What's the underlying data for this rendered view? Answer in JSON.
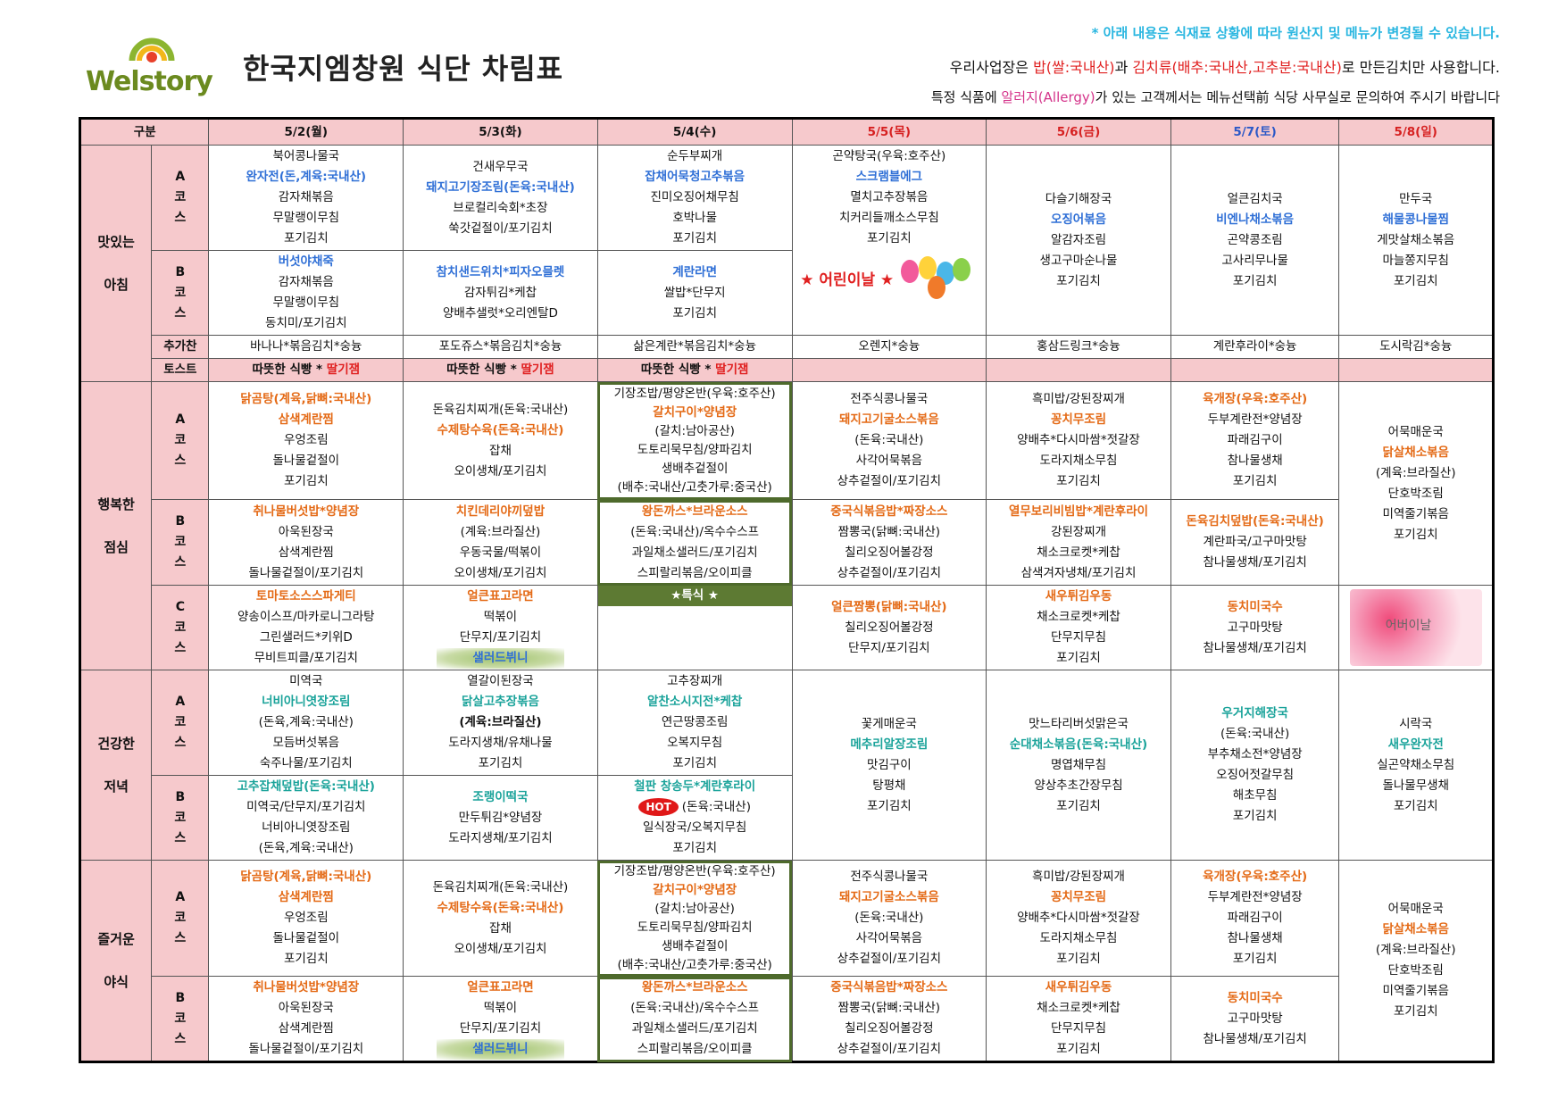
{
  "brand": "Welstory",
  "title": "한국지엠창원 식단 차림표",
  "notices": {
    "line1": "* 아래 내용은 식재료 상황에 따라 원산지 및 메뉴가 변경될 수 있습니다.",
    "line2_a": "우리사업장은 ",
    "line2_b": "밥(쌀:국내산)",
    "line2_c": "과 ",
    "line2_d": "김치류(배추:국내산,고추분:국내산)",
    "line2_e": "로 만든김치만 사용합니다.",
    "line3_a": "특정 식품에 ",
    "line3_b": "알러지(Allergy)",
    "line3_c": "가 있는 고객께서는 메뉴선택前 식당 사무실로 문의하여 주시기 바랍니다"
  },
  "colors": {
    "header_pink": "#f6c9cc",
    "saturday_blue": "#2b58c7",
    "holiday_red": "#d62020",
    "logo_green": "#6b8a1f"
  },
  "header": {
    "label": "구분",
    "days": [
      "5/2(월)",
      "5/3(화)",
      "5/4(수)",
      "5/5(목)",
      "5/6(금)",
      "5/7(토)",
      "5/8(일)"
    ]
  },
  "meals": {
    "breakfast": "맛있는\n\n아침",
    "lunch": "행복한\n\n점심",
    "dinner": "건강한\n\n저녁",
    "night": "즐거운\n\n야식"
  },
  "courses": {
    "a": "A\n코\n스",
    "b": "B\n코\n스",
    "c": "C\n코\n스"
  },
  "rowlabels": {
    "extra": "추가찬",
    "toast": "토스트"
  },
  "breakfast": {
    "a": {
      "mon": [
        "북어콩나물국",
        "완자전(돈,계육:국내산)",
        "감자채볶음",
        "무말랭이무침",
        "포기김치"
      ],
      "tue": [
        "건새우무국",
        "돼지고기장조림(돈육:국내산)",
        "브로컬리숙회*초장",
        "쑥갓겉절이/포기김치"
      ],
      "wed": [
        "순두부찌개",
        "잡채어묵청고추볶음",
        "진미오징어채무침",
        "호박나물",
        "포기김치"
      ],
      "thu": [
        "곤약탕국(우육:호주산)",
        "스크램블에그",
        "멸치고추장볶음",
        "치커리들깨소스무침",
        "포기김치"
      ],
      "fri": [
        "다슬기해장국",
        "오징어볶음",
        "알감자조림",
        "생고구마순나물",
        "포기김치"
      ],
      "sat": [
        "얼큰김치국",
        "비엔나채소볶음",
        "곤약콩조림",
        "고사리무나물",
        "포기김치"
      ],
      "sun": [
        "만두국",
        "해물콩나물찜",
        "게맛살채소볶음",
        "마늘쫑지무침",
        "포기김치"
      ]
    },
    "b": {
      "mon": [
        "버섯야채죽",
        "감자채볶음",
        "무말랭이무침",
        "동치미/포기김치"
      ],
      "tue": [
        "참치샌드위치*피자오믈렛",
        "감자튀김*케찹",
        "양배추샐럿*오리엔탈D"
      ],
      "wed": [
        "계란라면",
        "쌀밥*단무지",
        "포기김치"
      ]
    },
    "kids_day": "★ 어린이날 ★",
    "extra": [
      "바나나*볶음김치*숭늉",
      "포도쥬스*볶음김치*숭늉",
      "삶은계란*볶음김치*숭늉",
      "오렌지*숭늉",
      "홍삼드링크*숭늉",
      "계란후라이*숭늉",
      "도시락김*숭늉"
    ],
    "toast_a": "따뜻한 식빵 * ",
    "toast_b": "딸기잼"
  },
  "lunch": {
    "a": {
      "mon": [
        "닭곰탕(계육,닭뼈:국내산)",
        "삼색계란찜",
        "우엉조림",
        "돌나물겉절이",
        "포기김치"
      ],
      "tue": [
        "돈육김치찌개(돈육:국내산)",
        "수제탕수육(돈육:국내산)",
        "잡채",
        "오이생채/포기김치"
      ],
      "wed": [
        "기장조밥/평양온반(우육:호주산)",
        "갈치구이*양념장",
        "(갈치:남아공산)",
        "도토리묵무침/양파김치",
        "생배추겉절이",
        "(배추:국내산/고춧가루:중국산)"
      ],
      "thu": [
        "전주식콩나물국",
        "돼지고기굴소스볶음",
        "(돈육:국내산)",
        "사각어묵볶음",
        "상추겉절이/포기김치"
      ],
      "fri": [
        "흑미밥/강된장찌개",
        "꽁치무조림",
        "양배추*다시마쌈*젓갈장",
        "도라지채소무침",
        "포기김치"
      ],
      "sat": [
        "육개장(우육:호주산)",
        "두부계란전*양념장",
        "파래김구이",
        "참나물생채",
        "포기김치"
      ],
      "sun": [
        "어묵매운국",
        "닭살채소볶음",
        "(계육:브라질산)",
        "단호박조림",
        "미역줄기볶음",
        "포기김치"
      ]
    },
    "b": {
      "mon": [
        "취나물버섯밥*양념장",
        "아욱된장국",
        "삼색계란찜",
        "돌나물겉절이/포기김치"
      ],
      "tue": [
        "치킨데리야끼덮밥",
        "(계육:브라질산)",
        "우동국물/떡볶이",
        "오이생채/포기김치"
      ],
      "wed": [
        "왕돈까스*브라운소스",
        "(돈육:국내산)/옥수수스프",
        "과일채소샐러드/포기김치",
        "스피랄리볶음/오이피클"
      ],
      "thu": [
        "중국식볶음밥*짜장소스",
        "짬뽕국(닭뼈:국내산)",
        "칠리오징어볼강정",
        "상추겉절이/포기김치"
      ],
      "fri": [
        "열무보리비빔밥*계란후라이",
        "강된장찌개",
        "채소크로켓*케찹",
        "삼색겨자냉채/포기김치"
      ],
      "sat": [
        "돈육김치덮밥(돈육:국내산)",
        "계란파국/고구마맛탕",
        "참나물생채/포기김치"
      ]
    },
    "c": {
      "mon": [
        "토마토소스스파게티",
        "양송이스프/마카로니그라탕",
        "그린샐러드*키위D",
        "무비트피클/포기김치"
      ],
      "tue": [
        "얼큰표고라면",
        "떡볶이",
        "단무지/포기김치",
        "샐러드뷔니"
      ],
      "wed": [
        "★특식 ★"
      ],
      "thu": [
        "얼큰짬뽕(닭뼈:국내산)",
        "칠리오징어볼강정",
        "단무지/포기김치"
      ],
      "fri": [
        "새우튀김우동",
        "채소크로켓*케찹",
        "단무지무침",
        "포기김치"
      ],
      "sat": [
        "동치미국수",
        "고구마맛탕",
        "참나물생채/포기김치"
      ],
      "sun": [
        "어버이날"
      ]
    }
  },
  "dinner": {
    "a": {
      "mon": [
        "미역국",
        "너비아니엿장조림",
        "(돈육,계육:국내산)",
        "모듬버섯볶음",
        "숙주나물/포기김치"
      ],
      "tue": [
        "열갈이된장국",
        "닭살고추장볶음",
        "(계육:브라질산)",
        "도라지생채/유채나물",
        "포기김치"
      ],
      "wed": [
        "고추장찌개",
        "알찬소시지전*케찹",
        "연근땅콩조림",
        "오복지무침",
        "포기김치"
      ],
      "thu": [
        "꽃게매운국",
        "메추리알장조림",
        "맛김구이",
        "탕평채",
        "포기김치"
      ],
      "fri": [
        "맛느타리버섯맑은국",
        "순대채소볶음(돈육:국내산)",
        "명엽채무침",
        "양상추초간장무침",
        "포기김치"
      ],
      "sat": [
        "우거지해장국",
        "(돈육:국내산)",
        "부추채소전*양념장",
        "오징어젓갈무침",
        "해초무침",
        "포기김치"
      ],
      "sun": [
        "시락국",
        "새우완자전",
        "실곤약채소무침",
        "돌나물무생채",
        "포기김치"
      ]
    },
    "b": {
      "mon": [
        "고추잡채덮밥(돈육:국내산)",
        "미역국/단무지/포기김치",
        "너비아니엿장조림",
        "(돈육,계육:국내산)"
      ],
      "tue": [
        "조랭이떡국",
        "만두튀김*양념장",
        "도라지생채/포기김치"
      ],
      "wed": [
        "철판 창송두*계란후라이",
        "(돈육:국내산)",
        "일식장국/오복지무침",
        "포기김치"
      ],
      "hot": "HOT"
    }
  },
  "night": {
    "a": {
      "mon": [
        "닭곰탕(계육,닭뼈:국내산)",
        "삼색계란찜",
        "우엉조림",
        "돌나물겉절이",
        "포기김치"
      ],
      "tue": [
        "돈육김치찌개(돈육:국내산)",
        "수제탕수육(돈육:국내산)",
        "잡채",
        "오이생채/포기김치"
      ],
      "wed": [
        "기장조밥/평양온반(우육:호주산)",
        "갈치구이*양념장",
        "(갈치:남아공산)",
        "도토리묵무침/양파김치",
        "생배추겉절이",
        "(배추:국내산/고춧가루:중국산)"
      ],
      "thu": [
        "전주식콩나물국",
        "돼지고기굴소스볶음",
        "(돈육:국내산)",
        "사각어묵볶음",
        "상추겉절이/포기김치"
      ],
      "fri": [
        "흑미밥/강된장찌개",
        "꽁치무조림",
        "양배추*다시마쌈*젓갈장",
        "도라지채소무침",
        "포기김치"
      ],
      "sat": [
        "육개장(우육:호주산)",
        "두부계란전*양념장",
        "파래김구이",
        "참나물생채",
        "포기김치"
      ],
      "sun": [
        "어묵매운국",
        "닭살채소볶음",
        "(계육:브라질산)",
        "단호박조림",
        "미역줄기볶음",
        "포기김치"
      ]
    },
    "b": {
      "mon": [
        "취나물버섯밥*양념장",
        "아욱된장국",
        "삼색계란찜",
        "돌나물겉절이/포기김치"
      ],
      "tue": [
        "얼큰표고라면",
        "떡볶이",
        "단무지/포기김치",
        "샐러드뷔니"
      ],
      "wed": [
        "왕돈까스*브라운소스",
        "(돈육:국내산)/옥수수스프",
        "과일채소샐러드/포기김치",
        "스피랄리볶음/오이피클"
      ],
      "thu": [
        "중국식볶음밥*짜장소스",
        "짬뽕국(닭뼈:국내산)",
        "칠리오징어볼강정",
        "상추겉절이/포기김치"
      ],
      "fri": [
        "새우튀김우동",
        "채소크로켓*케찹",
        "단무지무침",
        "포기김치"
      ],
      "sat": [
        "동치미국수",
        "고구마맛탕",
        "참나물생채/포기김치"
      ]
    }
  }
}
